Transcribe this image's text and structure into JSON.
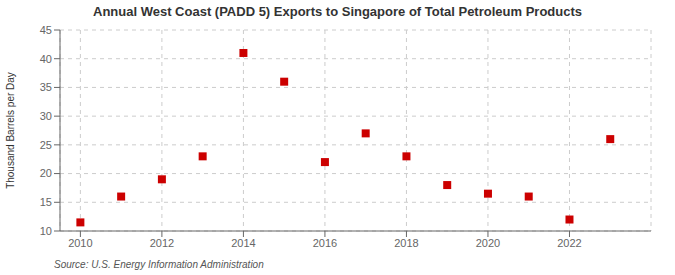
{
  "chart_data": {
    "type": "scatter",
    "title": "Annual West Coast (PADD 5) Exports to Singapore of Total Petroleum Products",
    "ylabel": "Thousand Barrels per Day",
    "annotations": [
      "Source: U.S. Energy Information Administration"
    ],
    "x": [
      2010,
      2011,
      2012,
      2013,
      2014,
      2015,
      2016,
      2017,
      2018,
      2019,
      2020,
      2021,
      2022,
      2023
    ],
    "values": [
      11.5,
      16.0,
      19.0,
      23.0,
      41.0,
      36.0,
      22.0,
      27.0,
      23.0,
      18.0,
      16.5,
      16.0,
      12.0,
      26.0
    ],
    "color": "#cc0000",
    "marker": "square",
    "xlim": [
      2009.5,
      2024.0
    ],
    "xticks": [
      2010,
      2012,
      2014,
      2016,
      2018,
      2020,
      2022
    ],
    "ylim": [
      10,
      45
    ],
    "yticks": [
      10,
      15,
      20,
      25,
      30,
      35,
      40,
      45
    ],
    "grid": true
  }
}
